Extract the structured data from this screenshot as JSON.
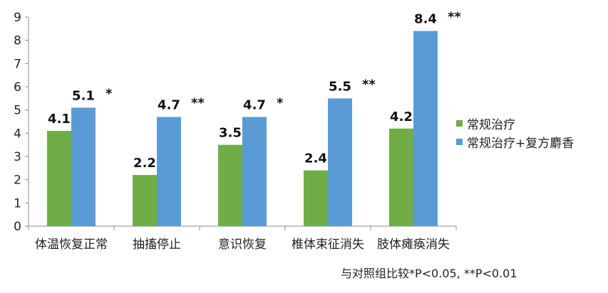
{
  "chart_data": {
    "type": "bar",
    "categories": [
      "体温恢复正常",
      "抽搐停止",
      "意识恢复",
      "椎体束征消失",
      "肢体瘫痪消失"
    ],
    "series": [
      {
        "name": "常规治疗",
        "values": [
          4.1,
          2.2,
          3.5,
          2.4,
          4.2
        ],
        "color": "#70ad47"
      },
      {
        "name": "常规治疗+复方麝香",
        "values": [
          5.1,
          4.7,
          4.7,
          5.5,
          8.4
        ],
        "color": "#5b9bd5"
      }
    ],
    "value_labels": [
      [
        "4.1",
        "2.2",
        "3.5",
        "2.4",
        "4.2"
      ],
      [
        "5.1",
        "4.7",
        "4.7",
        "5.5",
        "8.4"
      ]
    ],
    "significance": [
      "*",
      "**",
      "*",
      "**",
      "**"
    ],
    "ylim": [
      0,
      9
    ],
    "yticks": [
      "0",
      "1",
      "2",
      "3",
      "4",
      "5",
      "6",
      "7",
      "8",
      "9"
    ],
    "grid": false,
    "legend_position": "right",
    "title": "",
    "xlabel": "",
    "ylabel": ""
  },
  "footnote": "与对照组比较*P<0.05, **P<0.01"
}
